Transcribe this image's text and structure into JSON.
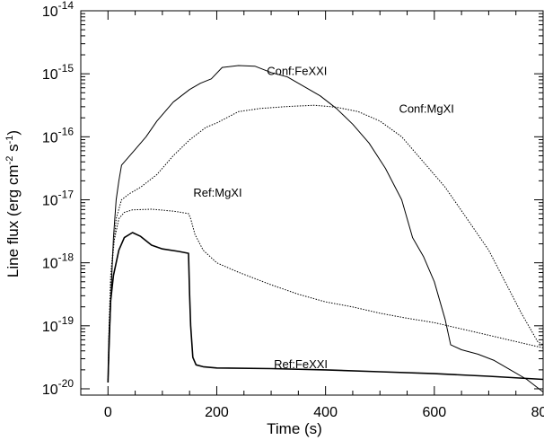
{
  "chart_data": {
    "type": "line",
    "title": "",
    "xlabel": "Time (s)",
    "ylabel": "Line flux (erg cm^-2 s^-1)",
    "ylabel_parts": [
      "Line flux (erg cm",
      "-2",
      " s",
      "-1",
      ")"
    ],
    "xlim": [
      -50,
      800
    ],
    "ylim_log10": [
      -20.1,
      -14
    ],
    "y_scale": "log",
    "grid": false,
    "x_ticks": [
      0,
      200,
      400,
      600,
      800
    ],
    "x_tick_labels": [
      "0",
      "200",
      "400",
      "600",
      "800"
    ],
    "y_ticks_exp": [
      -20,
      -19,
      -18,
      -17,
      -16,
      -15,
      -14
    ],
    "y_tick_base": "10",
    "y_tick_exponents": [
      "-20",
      "-19",
      "-18",
      "-17",
      "-16",
      "-15",
      "-14"
    ],
    "series": [
      {
        "name": "Conf:FeXXI",
        "style": "solid",
        "label_at": [
          292,
          -15.02
        ],
        "points": [
          [
            0,
            -19.9
          ],
          [
            3,
            -19.2
          ],
          [
            6,
            -18.4
          ],
          [
            10,
            -17.6
          ],
          [
            15,
            -17.0
          ],
          [
            20,
            -16.7
          ],
          [
            25,
            -16.45
          ],
          [
            35,
            -16.35
          ],
          [
            50,
            -16.2
          ],
          [
            70,
            -16.0
          ],
          [
            90,
            -15.75
          ],
          [
            120,
            -15.45
          ],
          [
            150,
            -15.25
          ],
          [
            170,
            -15.15
          ],
          [
            190,
            -15.08
          ],
          [
            210,
            -14.9
          ],
          [
            240,
            -14.87
          ],
          [
            270,
            -14.88
          ],
          [
            300,
            -14.98
          ],
          [
            330,
            -15.05
          ],
          [
            360,
            -15.2
          ],
          [
            390,
            -15.35
          ],
          [
            420,
            -15.55
          ],
          [
            450,
            -15.8
          ],
          [
            480,
            -16.1
          ],
          [
            510,
            -16.5
          ],
          [
            540,
            -17.0
          ],
          [
            560,
            -17.6
          ],
          [
            580,
            -17.9
          ],
          [
            600,
            -18.3
          ],
          [
            620,
            -18.9
          ],
          [
            630,
            -19.3
          ],
          [
            650,
            -19.38
          ],
          [
            680,
            -19.45
          ],
          [
            710,
            -19.55
          ],
          [
            740,
            -19.7
          ],
          [
            770,
            -19.85
          ],
          [
            800,
            -20.05
          ]
        ]
      },
      {
        "name": "Conf:MgXI",
        "style": "dotted",
        "label_at": [
          535,
          -15.62
        ],
        "points": [
          [
            0,
            -19.9
          ],
          [
            3,
            -19.0
          ],
          [
            8,
            -18.0
          ],
          [
            15,
            -17.3
          ],
          [
            25,
            -17.0
          ],
          [
            40,
            -16.9
          ],
          [
            60,
            -16.8
          ],
          [
            90,
            -16.6
          ],
          [
            120,
            -16.3
          ],
          [
            150,
            -16.05
          ],
          [
            180,
            -15.85
          ],
          [
            200,
            -15.78
          ],
          [
            240,
            -15.6
          ],
          [
            280,
            -15.55
          ],
          [
            330,
            -15.52
          ],
          [
            380,
            -15.5
          ],
          [
            420,
            -15.53
          ],
          [
            460,
            -15.6
          ],
          [
            500,
            -15.75
          ],
          [
            540,
            -16.0
          ],
          [
            580,
            -16.4
          ],
          [
            620,
            -16.8
          ],
          [
            660,
            -17.3
          ],
          [
            700,
            -17.8
          ],
          [
            730,
            -18.3
          ],
          [
            760,
            -18.8
          ],
          [
            790,
            -19.25
          ],
          [
            800,
            -19.3
          ]
        ]
      },
      {
        "name": "Ref:MgXI",
        "style": "dotted",
        "label_at": [
          157,
          -16.95
        ],
        "points": [
          [
            0,
            -19.9
          ],
          [
            2,
            -19.0
          ],
          [
            5,
            -18.2
          ],
          [
            10,
            -17.7
          ],
          [
            20,
            -17.3
          ],
          [
            30,
            -17.2
          ],
          [
            45,
            -17.16
          ],
          [
            80,
            -17.15
          ],
          [
            120,
            -17.18
          ],
          [
            148,
            -17.22
          ],
          [
            152,
            -17.3
          ],
          [
            160,
            -17.55
          ],
          [
            175,
            -17.8
          ],
          [
            200,
            -18.0
          ],
          [
            240,
            -18.15
          ],
          [
            300,
            -18.35
          ],
          [
            350,
            -18.5
          ],
          [
            400,
            -18.62
          ],
          [
            450,
            -18.7
          ],
          [
            500,
            -18.8
          ],
          [
            550,
            -18.88
          ],
          [
            600,
            -18.95
          ],
          [
            650,
            -19.05
          ],
          [
            700,
            -19.15
          ],
          [
            750,
            -19.25
          ],
          [
            800,
            -19.35
          ]
        ]
      },
      {
        "name": "Ref:FeXXI",
        "style": "solid",
        "width": 1.6,
        "label_at": [
          305,
          -19.67
        ],
        "points": [
          [
            0,
            -19.9
          ],
          [
            2,
            -19.2
          ],
          [
            5,
            -18.6
          ],
          [
            10,
            -18.2
          ],
          [
            20,
            -17.8
          ],
          [
            30,
            -17.6
          ],
          [
            45,
            -17.52
          ],
          [
            60,
            -17.58
          ],
          [
            80,
            -17.72
          ],
          [
            100,
            -17.78
          ],
          [
            130,
            -17.82
          ],
          [
            148,
            -17.85
          ],
          [
            150,
            -18.5
          ],
          [
            152,
            -19.0
          ],
          [
            156,
            -19.5
          ],
          [
            162,
            -19.62
          ],
          [
            175,
            -19.65
          ],
          [
            200,
            -19.67
          ],
          [
            300,
            -19.68
          ],
          [
            400,
            -19.7
          ],
          [
            500,
            -19.73
          ],
          [
            600,
            -19.76
          ],
          [
            700,
            -19.8
          ],
          [
            800,
            -19.85
          ]
        ]
      }
    ]
  }
}
